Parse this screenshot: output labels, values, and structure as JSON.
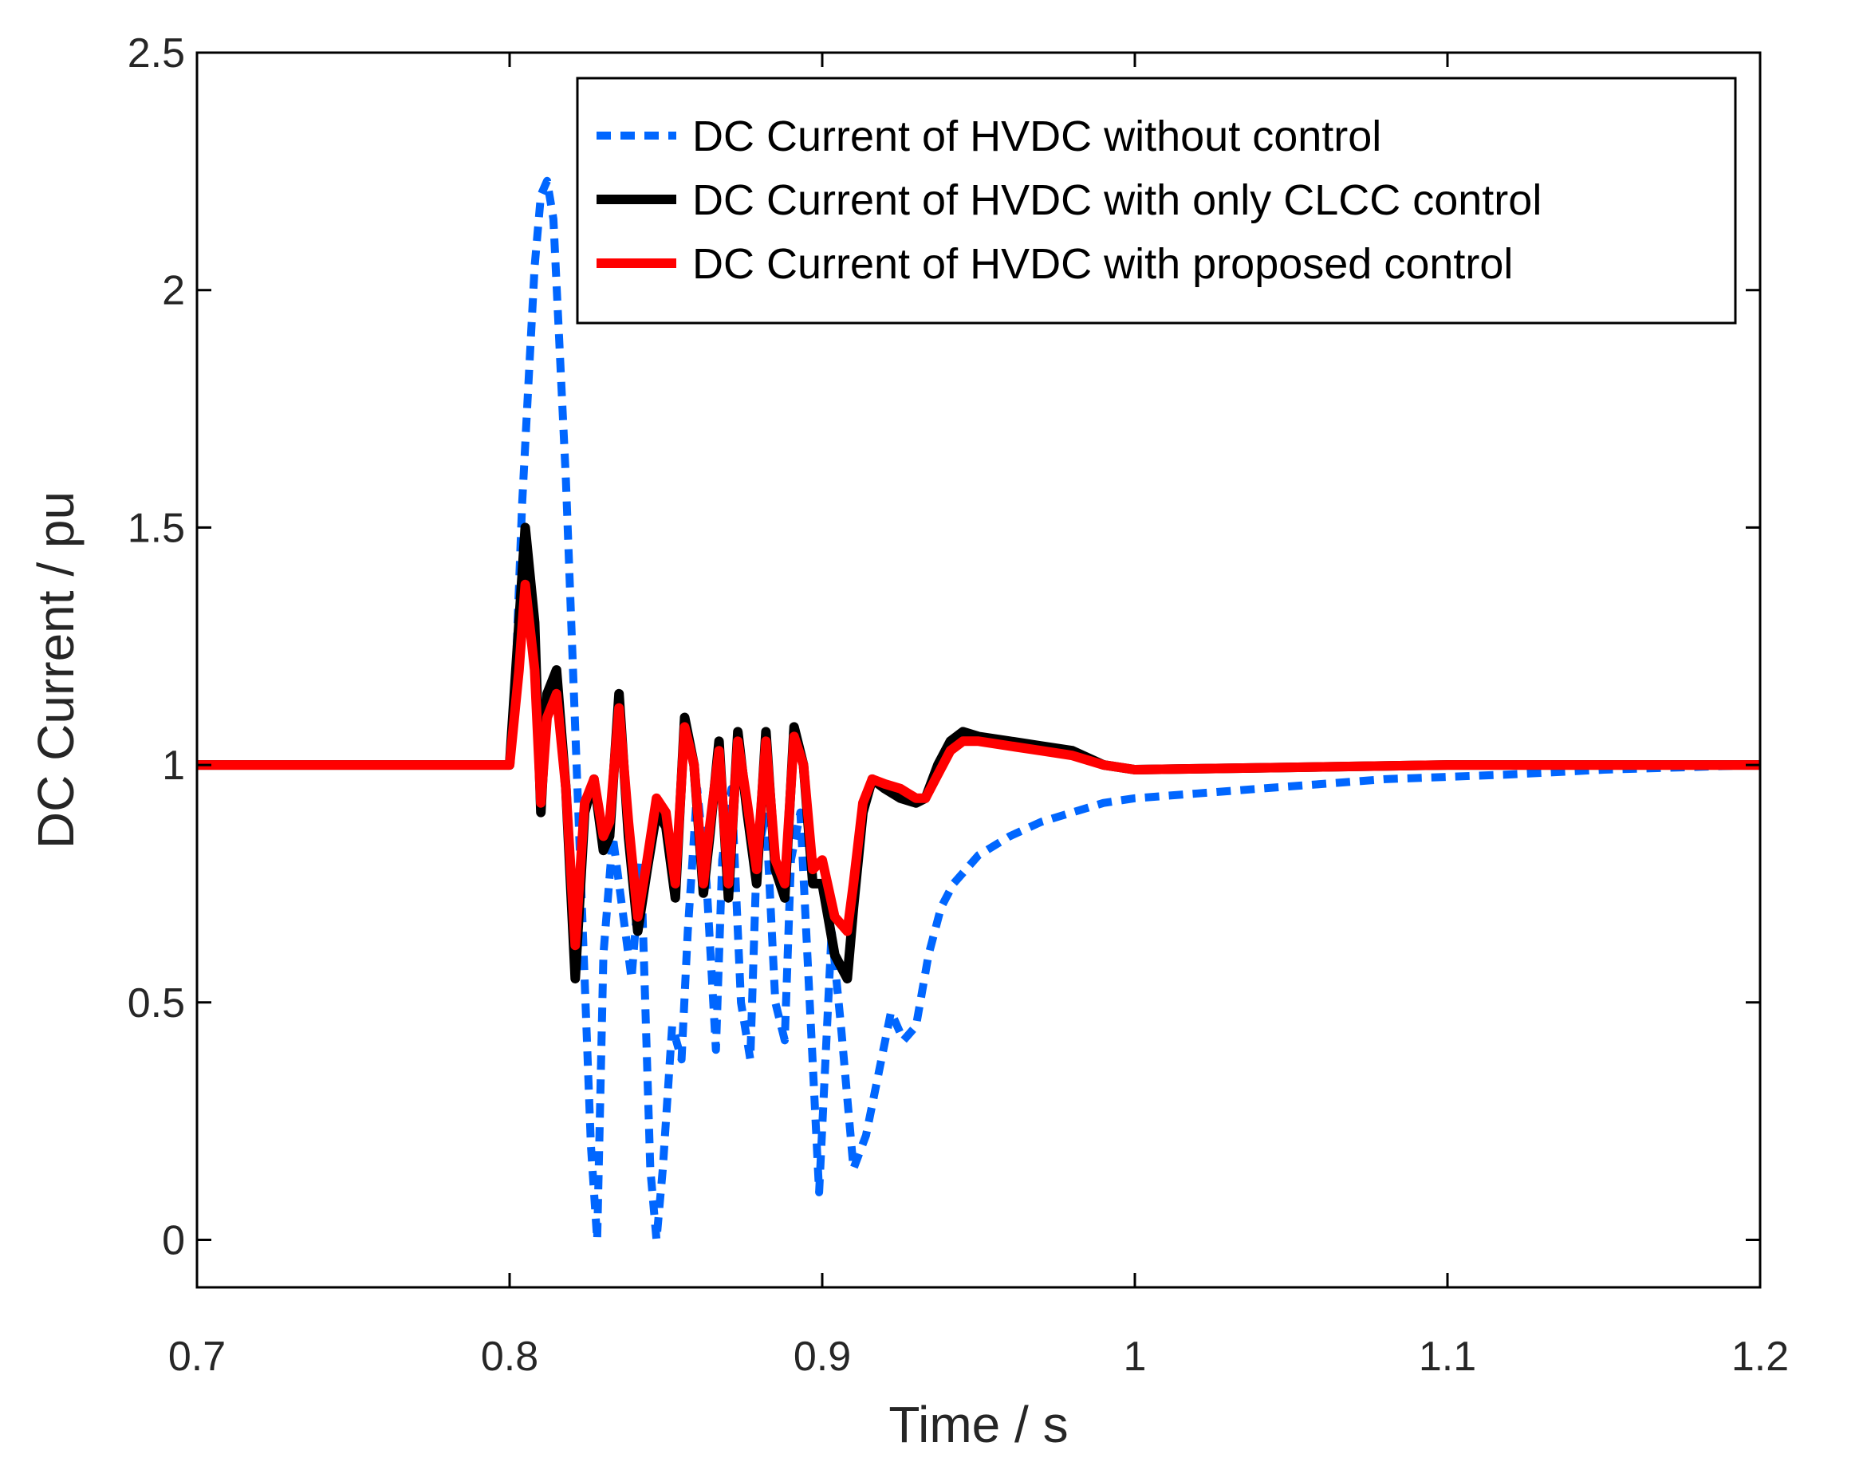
{
  "chart_data": {
    "type": "line",
    "title": "",
    "xlabel": "Time / s",
    "ylabel": "DC Current / pu",
    "xlim": [
      0.7,
      1.2
    ],
    "ylim": [
      -0.1,
      2.5
    ],
    "xticks": [
      0.7,
      0.8,
      0.9,
      1.0,
      1.1,
      1.2
    ],
    "xtick_labels": [
      "0.7",
      "0.8",
      "0.9",
      "1",
      "1.1",
      "1.2"
    ],
    "yticks": [
      0,
      0.5,
      1.0,
      1.5,
      2.0,
      2.5
    ],
    "ytick_labels": [
      "0",
      "0.5",
      "1",
      "1.5",
      "2",
      "2.5"
    ],
    "grid": false,
    "legend_position": "top-right",
    "series": [
      {
        "name": "DC Current of HVDC without control",
        "color": "#0066ff",
        "style": "dashed",
        "x": [
          0.7,
          0.8,
          0.802,
          0.804,
          0.806,
          0.808,
          0.81,
          0.812,
          0.814,
          0.818,
          0.822,
          0.826,
          0.828,
          0.83,
          0.833,
          0.836,
          0.839,
          0.842,
          0.845,
          0.847,
          0.849,
          0.852,
          0.855,
          0.857,
          0.86,
          0.863,
          0.866,
          0.868,
          0.871,
          0.874,
          0.877,
          0.879,
          0.882,
          0.885,
          0.888,
          0.89,
          0.893,
          0.896,
          0.899,
          0.903,
          0.906,
          0.91,
          0.914,
          0.918,
          0.922,
          0.926,
          0.93,
          0.934,
          0.938,
          0.942,
          0.946,
          0.95,
          0.96,
          0.97,
          0.98,
          0.99,
          1.0,
          1.02,
          1.04,
          1.06,
          1.08,
          1.1,
          1.12,
          1.15,
          1.2
        ],
        "y": [
          1.0,
          1.0,
          1.2,
          1.55,
          1.8,
          2.05,
          2.2,
          2.23,
          2.15,
          1.6,
          0.9,
          0.2,
          0.0,
          0.6,
          0.85,
          0.7,
          0.55,
          0.8,
          0.15,
          0.0,
          0.15,
          0.45,
          0.38,
          0.65,
          0.95,
          0.75,
          0.4,
          0.8,
          0.95,
          0.5,
          0.38,
          0.8,
          0.9,
          0.5,
          0.42,
          0.8,
          0.9,
          0.5,
          0.1,
          0.65,
          0.45,
          0.15,
          0.22,
          0.35,
          0.48,
          0.42,
          0.45,
          0.6,
          0.7,
          0.75,
          0.78,
          0.81,
          0.85,
          0.88,
          0.9,
          0.92,
          0.93,
          0.94,
          0.95,
          0.96,
          0.97,
          0.975,
          0.98,
          0.99,
          1.0
        ]
      },
      {
        "name": "DC Current of HVDC with only CLCC control",
        "color": "#000000",
        "style": "solid",
        "x": [
          0.7,
          0.8,
          0.803,
          0.805,
          0.808,
          0.81,
          0.812,
          0.815,
          0.818,
          0.821,
          0.824,
          0.827,
          0.83,
          0.832,
          0.835,
          0.838,
          0.841,
          0.844,
          0.847,
          0.85,
          0.853,
          0.856,
          0.859,
          0.862,
          0.864,
          0.867,
          0.87,
          0.873,
          0.876,
          0.879,
          0.882,
          0.885,
          0.888,
          0.891,
          0.894,
          0.897,
          0.9,
          0.904,
          0.908,
          0.91,
          0.913,
          0.916,
          0.92,
          0.925,
          0.93,
          0.933,
          0.937,
          0.941,
          0.945,
          0.95,
          0.96,
          0.97,
          0.98,
          0.99,
          1.0,
          1.05,
          1.1,
          1.15,
          1.2
        ],
        "y": [
          1.0,
          1.0,
          1.3,
          1.5,
          1.3,
          0.9,
          1.15,
          1.2,
          0.95,
          0.55,
          0.9,
          0.97,
          0.82,
          0.85,
          1.15,
          0.85,
          0.65,
          0.78,
          0.9,
          0.87,
          0.72,
          1.1,
          1.0,
          0.73,
          0.85,
          1.05,
          0.72,
          1.07,
          0.9,
          0.75,
          1.07,
          0.78,
          0.72,
          1.08,
          1.0,
          0.75,
          0.75,
          0.6,
          0.55,
          0.7,
          0.9,
          0.97,
          0.95,
          0.93,
          0.92,
          0.93,
          1.0,
          1.05,
          1.07,
          1.06,
          1.05,
          1.04,
          1.03,
          1.0,
          0.99,
          0.995,
          1.0,
          1.0,
          1.0
        ]
      },
      {
        "name": "DC Current of HVDC with proposed control",
        "color": "#ff0000",
        "style": "solid",
        "x": [
          0.7,
          0.8,
          0.803,
          0.805,
          0.808,
          0.81,
          0.812,
          0.815,
          0.818,
          0.821,
          0.824,
          0.827,
          0.83,
          0.832,
          0.835,
          0.838,
          0.841,
          0.844,
          0.847,
          0.85,
          0.853,
          0.856,
          0.859,
          0.862,
          0.864,
          0.867,
          0.87,
          0.873,
          0.876,
          0.879,
          0.882,
          0.885,
          0.888,
          0.891,
          0.894,
          0.897,
          0.9,
          0.904,
          0.908,
          0.91,
          0.913,
          0.916,
          0.92,
          0.925,
          0.93,
          0.933,
          0.937,
          0.941,
          0.945,
          0.95,
          0.96,
          0.97,
          0.98,
          0.99,
          1.0,
          1.05,
          1.1,
          1.15,
          1.2
        ],
        "y": [
          1.0,
          1.0,
          1.2,
          1.38,
          1.2,
          0.92,
          1.1,
          1.15,
          0.95,
          0.62,
          0.92,
          0.97,
          0.85,
          0.88,
          1.12,
          0.88,
          0.68,
          0.8,
          0.93,
          0.9,
          0.75,
          1.08,
          1.0,
          0.75,
          0.87,
          1.03,
          0.75,
          1.05,
          0.92,
          0.78,
          1.05,
          0.8,
          0.75,
          1.06,
          1.0,
          0.78,
          0.8,
          0.68,
          0.65,
          0.75,
          0.92,
          0.97,
          0.96,
          0.95,
          0.93,
          0.93,
          0.98,
          1.03,
          1.05,
          1.05,
          1.04,
          1.03,
          1.02,
          1.0,
          0.99,
          0.995,
          1.0,
          1.0,
          1.0
        ]
      }
    ]
  }
}
